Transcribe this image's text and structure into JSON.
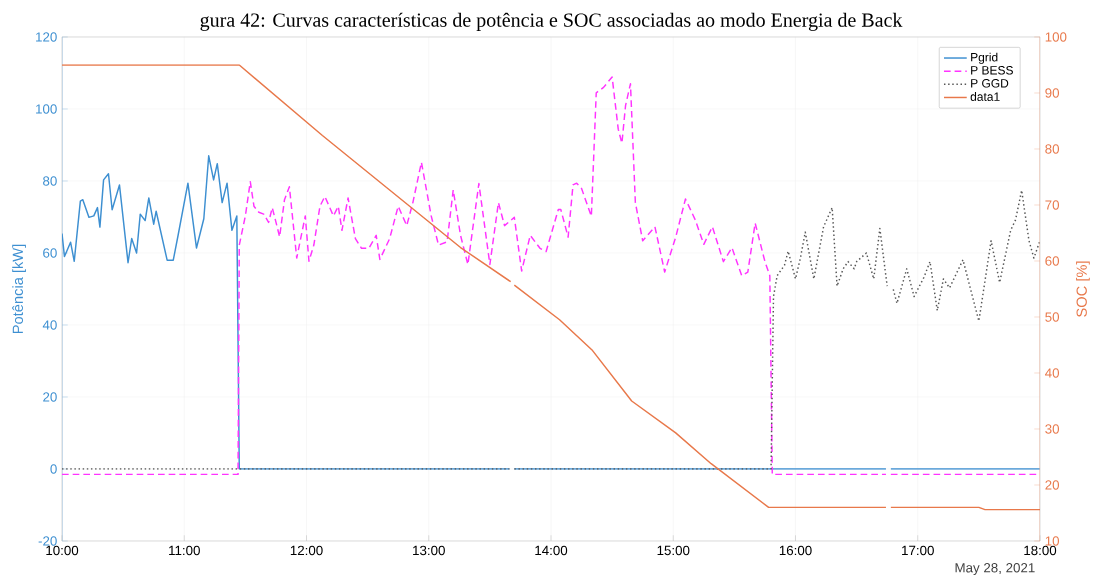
{
  "chart_data": {
    "type": "line",
    "title": "gura 42: Curvas características de potência e SOC associadas ao modo Energia de Back",
    "ylabel": "Potência [kW]",
    "y2label": "SOC [%]",
    "annotations": [
      "May 28, 2021"
    ],
    "xlim": [
      10,
      18
    ],
    "xticks": [
      {
        "value": 10,
        "label": "10:00"
      },
      {
        "value": 11,
        "label": "11:00"
      },
      {
        "value": 12,
        "label": "12:00"
      },
      {
        "value": 13,
        "label": "13:00"
      },
      {
        "value": 14,
        "label": "14:00"
      },
      {
        "value": 15,
        "label": "15:00"
      },
      {
        "value": 16,
        "label": "16:00"
      },
      {
        "value": 17,
        "label": "17:00"
      },
      {
        "value": 18,
        "label": "18:00"
      }
    ],
    "ylim": [
      -20,
      120
    ],
    "yticks": [
      -20,
      0,
      20,
      40,
      60,
      80,
      100,
      120
    ],
    "y2lim": [
      10,
      100
    ],
    "y2ticks": [
      10,
      20,
      30,
      40,
      50,
      60,
      70,
      80,
      90,
      100
    ],
    "grid": true,
    "legend": "top right",
    "marker": "none",
    "series": [
      {
        "name": "Pgrid",
        "color": "#3d8fd1",
        "line_style": "solid",
        "x": [
          10.0,
          10.02,
          10.07,
          10.1,
          10.15,
          10.17,
          10.22,
          10.26,
          10.29,
          10.31,
          10.34,
          10.38,
          10.41,
          10.47,
          10.54,
          10.57,
          10.61,
          10.64,
          10.68,
          10.71,
          10.75,
          10.77,
          10.86,
          10.91,
          10.95,
          11.03,
          11.1,
          11.16,
          11.2,
          11.24,
          11.27,
          11.31,
          11.35,
          11.39,
          11.43,
          11.45,
          13.66,
          13.68,
          13.7,
          16.74,
          16.76,
          16.78,
          18.0
        ],
        "values": [
          65.4,
          59,
          63,
          57.7,
          74.4,
          74.8,
          69.9,
          70.3,
          72.6,
          67.2,
          80.3,
          82,
          72,
          78.9,
          57.3,
          64,
          60,
          70.8,
          69,
          75.3,
          68,
          71.6,
          58,
          58,
          65,
          79.4,
          61.4,
          69.5,
          87,
          80.3,
          84.8,
          74,
          79.4,
          66.3,
          70.3,
          0,
          0,
          null,
          0,
          0,
          null,
          0,
          0
        ]
      },
      {
        "name": "P BESS",
        "color": "#ff33ff",
        "line_style": "dashed",
        "x": [
          10.0,
          11.44,
          11.45,
          11.5,
          11.54,
          11.57,
          11.61,
          11.65,
          11.69,
          11.72,
          11.78,
          11.82,
          11.86,
          11.92,
          11.99,
          12.02,
          12.06,
          12.11,
          12.15,
          12.22,
          12.26,
          12.29,
          12.34,
          12.4,
          12.45,
          12.51,
          12.57,
          12.6,
          12.68,
          12.75,
          12.82,
          12.87,
          12.94,
          13.02,
          13.08,
          13.15,
          13.2,
          13.26,
          13.32,
          13.41,
          13.5,
          13.57,
          13.62,
          13.7,
          13.76,
          13.83,
          13.91,
          13.96,
          14.06,
          14.08,
          14.14,
          14.18,
          14.21,
          14.25,
          14.33,
          14.37,
          14.43,
          14.5,
          14.55,
          14.58,
          14.61,
          14.65,
          14.69,
          14.75,
          14.85,
          14.93,
          15.02,
          15.1,
          15.18,
          15.25,
          15.32,
          15.41,
          15.48,
          15.56,
          15.61,
          15.67,
          15.75,
          15.79,
          15.81,
          16.74,
          16.76,
          16.78,
          18.0
        ],
        "values": [
          -1.5,
          -1.5,
          62.2,
          70.3,
          79.8,
          73,
          71.3,
          70.8,
          68.5,
          72.6,
          64.5,
          74.8,
          78.4,
          58.6,
          70.3,
          57.7,
          62.2,
          73,
          75.7,
          70.3,
          73,
          66.3,
          75.3,
          64,
          61.3,
          61.3,
          64.9,
          58.2,
          64,
          73,
          67.6,
          74,
          85.2,
          70.3,
          62.2,
          63.1,
          77.5,
          64.9,
          56.8,
          79.3,
          56.8,
          74,
          67.6,
          69.9,
          55,
          64.9,
          61.3,
          60.4,
          72.1,
          72.1,
          64.4,
          78.9,
          79.4,
          77.9,
          70.2,
          104.5,
          106,
          108.9,
          94.4,
          90.5,
          101,
          107,
          74,
          63.4,
          67.3,
          54.7,
          64.4,
          75,
          69.2,
          62.4,
          67.3,
          57.6,
          61.5,
          53.7,
          54.7,
          68.3,
          57.6,
          53.7,
          -1.5,
          -1.5,
          null,
          -1.5,
          -1.5
        ]
      },
      {
        "name": "P GGD",
        "color": "#555555",
        "line_style": "dotted",
        "x": [
          10.0,
          13.66,
          13.68,
          13.7,
          15.8,
          15.82,
          15.85,
          15.91,
          15.94,
          16.0,
          16.04,
          16.08,
          16.15,
          16.23,
          16.3,
          16.34,
          16.39,
          16.43,
          16.48,
          16.5,
          16.58,
          16.64,
          16.69,
          16.75,
          16.77,
          16.8,
          16.83,
          16.91,
          16.97,
          17.05,
          17.1,
          17.16,
          17.21,
          17.26,
          17.37,
          17.5,
          17.6,
          17.67,
          17.76,
          17.8,
          17.85,
          17.91,
          17.95,
          18.0
        ],
        "values": [
          0,
          0,
          null,
          0,
          0,
          47.9,
          53.7,
          56.6,
          60.5,
          52.8,
          58.6,
          65.8,
          52.8,
          67.3,
          72.6,
          50.8,
          55.6,
          57.6,
          55.6,
          57.6,
          60,
          52.8,
          66.8,
          50.8,
          null,
          49.9,
          46,
          55.6,
          47.9,
          53.2,
          57.6,
          44,
          52.8,
          50.3,
          58.1,
          41.1,
          63.4,
          51.8,
          66.3,
          69.2,
          77.4,
          63.4,
          58.6,
          63.4
        ]
      },
      {
        "name": "data1",
        "color": "#e8784a",
        "line_style": "solid",
        "axis": "y2",
        "x": [
          10.0,
          11.45,
          12.13,
          13.26,
          13.67,
          13.68,
          13.7,
          14.07,
          14.34,
          14.66,
          15.02,
          15.31,
          15.78,
          16.74,
          16.76,
          16.78,
          17.5,
          17.55,
          18.0
        ],
        "values": [
          95,
          95,
          82.4,
          62.4,
          56.3,
          null,
          55.7,
          49.5,
          44,
          35,
          29.3,
          23.8,
          16,
          16,
          null,
          16,
          16,
          15.6,
          15.6
        ]
      }
    ]
  }
}
